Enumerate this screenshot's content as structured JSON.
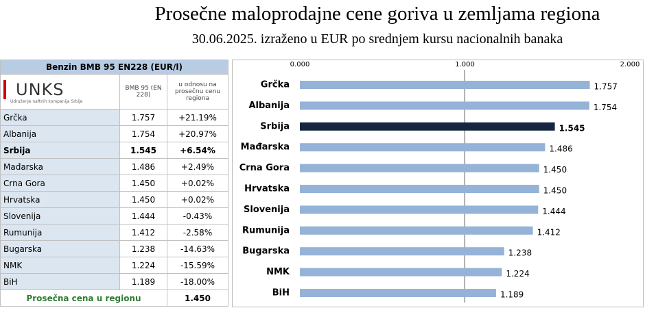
{
  "header": {
    "title": "Prosečne maloprodajne cene goriva u zemljama regiona",
    "subtitle": "30.06.2025. izraženo u EUR po srednjem kursu nacionalnih banaka"
  },
  "table": {
    "caption": "Benzin BMB 95 EN228 (EUR/l)",
    "logo": "UNKS",
    "logo_sub": "Udruženje naftnih kompanija Srbije",
    "columns": [
      "BMB 95 (EN 228)",
      "u odnosu na prosečnu cenu regiona"
    ],
    "rows": [
      [
        "Grčka",
        "1.757",
        "+21.19%"
      ],
      [
        "Albanija",
        "1.754",
        "+20.97%"
      ],
      [
        "Srbija",
        "1.545",
        "+6.54%"
      ],
      [
        "Mađarska",
        "1.486",
        "+2.49%"
      ],
      [
        "Crna Gora",
        "1.450",
        "+0.02%"
      ],
      [
        "Hrvatska",
        "1.450",
        "+0.02%"
      ],
      [
        "Slovenija",
        "1.444",
        "-0.43%"
      ],
      [
        "Rumunija",
        "1.412",
        "-2.58%"
      ],
      [
        "Bugarska",
        "1.238",
        "-14.63%"
      ],
      [
        "NMK",
        "1.224",
        "-15.59%"
      ],
      [
        "BiH",
        "1.189",
        "-18.00%"
      ]
    ],
    "footer": [
      "Prosečna cena u regionu",
      "1.450"
    ]
  },
  "chart_data": {
    "type": "bar",
    "orientation": "horizontal",
    "categories": [
      "Grčka",
      "Albanija",
      "Srbija",
      "Mađarska",
      "Crna Gora",
      "Hrvatska",
      "Slovenija",
      "Rumunija",
      "Bugarska",
      "NMK",
      "BiH"
    ],
    "values": [
      1.757,
      1.754,
      1.545,
      1.486,
      1.45,
      1.45,
      1.444,
      1.412,
      1.238,
      1.224,
      1.189
    ],
    "value_labels": [
      "1.757",
      "1.754",
      "1.545",
      "1.486",
      "1.450",
      "1.450",
      "1.444",
      "1.412",
      "1.238",
      "1.224",
      "1.189"
    ],
    "colors": [
      "#95b3d7",
      "#95b3d7",
      "#17263f",
      "#95b3d7",
      "#95b3d7",
      "#95b3d7",
      "#95b3d7",
      "#95b3d7",
      "#95b3d7",
      "#95b3d7",
      "#95b3d7"
    ],
    "xlim": [
      0,
      2
    ],
    "xticks": [
      {
        "value": 0,
        "label": "0.000"
      },
      {
        "value": 1,
        "label": "1.000"
      },
      {
        "value": 2,
        "label": "2.000"
      }
    ],
    "grid": true
  }
}
